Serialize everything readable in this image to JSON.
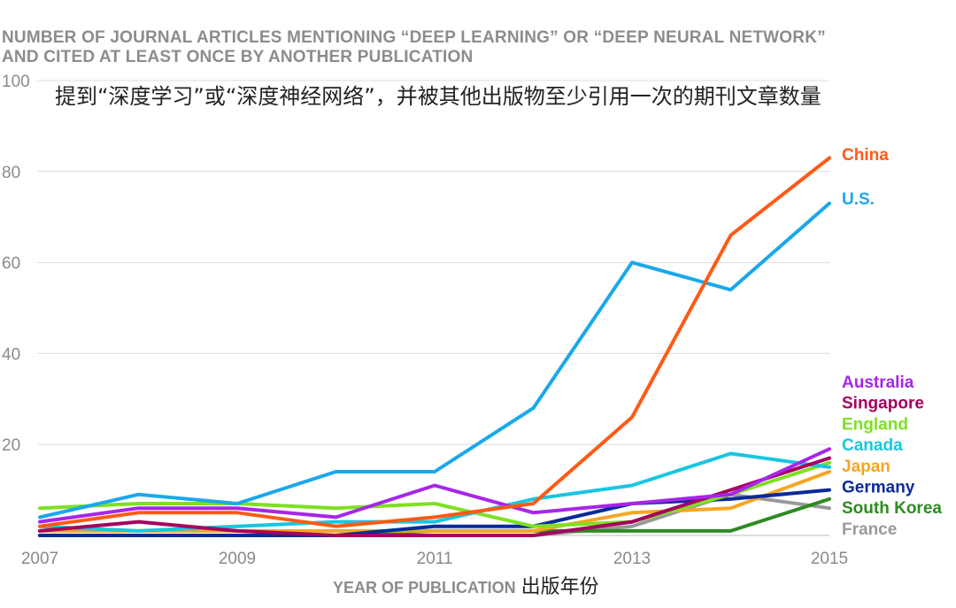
{
  "chart_data": {
    "type": "line",
    "title": [
      "NUMBER OF JOURNAL ARTICLES MENTIONING “DEEP LEARNING” OR “DEEP NEURAL NETWORK”",
      "AND CITED AT LEAST ONCE BY ANOTHER PUBLICATION"
    ],
    "subtitle": "提到“深度学习”或“深度神经网络”，并被其他出版物至少引用一次的期刊文章数量",
    "xlabel": "YEAR OF PUBLICATION",
    "xlabel_cn": "出版年份",
    "x": [
      2007,
      2008,
      2009,
      2010,
      2011,
      2012,
      2013,
      2014,
      2015
    ],
    "xticks": [
      "2007",
      "2009",
      "2011",
      "2013",
      "2015"
    ],
    "yticks": [
      "20",
      "40",
      "60",
      "80",
      "100"
    ],
    "ylim": [
      0,
      100
    ],
    "grid": true,
    "legend": "right, labels at line ends",
    "series": [
      {
        "name": "France",
        "color": "#999999",
        "values": [
          0,
          0,
          0,
          0,
          0,
          0,
          2,
          9,
          6
        ]
      },
      {
        "name": "South Korea",
        "color": "#2e8b22",
        "values": [
          0,
          0,
          0,
          0,
          1,
          1,
          1,
          1,
          8
        ]
      },
      {
        "name": "Japan",
        "color": "#f5a623",
        "values": [
          1,
          1,
          1,
          1,
          1,
          1,
          5,
          6,
          14
        ]
      },
      {
        "name": "Germany",
        "color": "#0a2a9a",
        "values": [
          0,
          0,
          0,
          0,
          2,
          2,
          7,
          8,
          10
        ]
      },
      {
        "name": "England",
        "color": "#7ee022",
        "values": [
          6,
          7,
          7,
          6,
          7,
          2,
          3,
          9,
          16
        ]
      },
      {
        "name": "Canada",
        "color": "#18c6e0",
        "values": [
          2,
          1,
          2,
          3,
          3,
          8,
          11,
          18,
          15
        ]
      },
      {
        "name": "Singapore",
        "color": "#a5005f",
        "values": [
          1,
          3,
          1,
          0,
          0,
          0,
          3,
          10,
          17
        ]
      },
      {
        "name": "Australia",
        "color": "#a626e8",
        "values": [
          3,
          6,
          6,
          4,
          11,
          5,
          7,
          9,
          19
        ]
      },
      {
        "name": "U.S.",
        "color": "#1aa8ec",
        "values": [
          4,
          9,
          7,
          14,
          14,
          28,
          60,
          54,
          73
        ]
      },
      {
        "name": "China",
        "color": "#ff5a14",
        "values": [
          2,
          5,
          5,
          2,
          4,
          7,
          26,
          66,
          83
        ]
      }
    ],
    "legend_order": [
      "China",
      "U.S.",
      "Australia",
      "Singapore",
      "England",
      "Canada",
      "Japan",
      "Germany",
      "South Korea",
      "France"
    ]
  }
}
